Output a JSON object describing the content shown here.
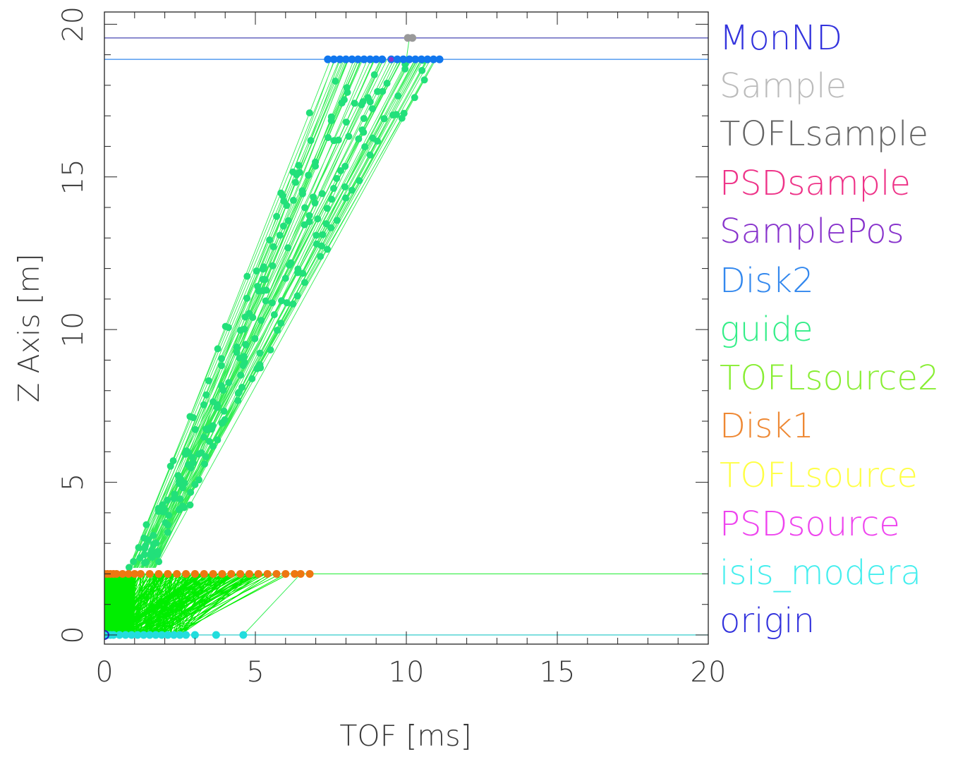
{
  "chart_data": {
    "type": "line",
    "title": "",
    "xlabel": "TOF [ms]",
    "ylabel": "Z Axis [m]",
    "xlim": [
      0,
      20
    ],
    "ylim": [
      -0.3,
      20.4
    ],
    "x_ticks": [
      0,
      5,
      10,
      15,
      20
    ],
    "x_tick_labels": [
      "0",
      "5",
      "10",
      "15",
      "20"
    ],
    "y_ticks": [
      0,
      5,
      10,
      15,
      20
    ],
    "y_tick_labels": [
      "0",
      "5",
      "10",
      "15",
      "20"
    ],
    "grid": false,
    "legend_position": "right",
    "legend": [
      {
        "name": "MonND",
        "color": "#3333dd"
      },
      {
        "name": "Sample",
        "color": "#bbbbbb"
      },
      {
        "name": "TOFLsample",
        "color": "#666666"
      },
      {
        "name": "PSDsample",
        "color": "#ee3388"
      },
      {
        "name": "SamplePos",
        "color": "#8833cc"
      },
      {
        "name": "Disk2",
        "color": "#3388ee"
      },
      {
        "name": "guide",
        "color": "#33ee88"
      },
      {
        "name": "TOFLsource2",
        "color": "#88ee33"
      },
      {
        "name": "Disk1",
        "color": "#ee8833"
      },
      {
        "name": "TOFLsource",
        "color": "#ffff44"
      },
      {
        "name": "PSDsource",
        "color": "#ee44ee"
      },
      {
        "name": "isis_modera",
        "color": "#44eeee"
      },
      {
        "name": "origin",
        "color": "#3333dd"
      }
    ],
    "component_lines": [
      {
        "name": "MonND",
        "z": 19.55,
        "color": "#3333aa"
      },
      {
        "name": "Disk2",
        "z": 18.85,
        "color": "#3388ee"
      },
      {
        "name": "Disk1",
        "z": 2.0,
        "color": "#33ee44"
      },
      {
        "name": "isis_modera",
        "z": 0.0,
        "color": "#33cccc"
      }
    ],
    "series": [
      {
        "name": "Disk1",
        "color": "#ee7711",
        "z": 2.0,
        "x": [
          0.0,
          0.1,
          0.2,
          0.3,
          0.4,
          0.6,
          0.8,
          1.0,
          1.2,
          1.5,
          1.8,
          2.1,
          2.4,
          2.7,
          3.0,
          3.3,
          3.6,
          3.9,
          4.2,
          4.5,
          4.8,
          5.1,
          5.4,
          5.7,
          6.0,
          6.3,
          6.5,
          6.8
        ]
      },
      {
        "name": "isis_modera",
        "color": "#22dddd",
        "z": 0.0,
        "x": [
          0.0,
          0.1,
          0.2,
          0.3,
          0.5,
          0.7,
          0.9,
          1.1,
          1.3,
          1.5,
          1.7,
          1.9,
          2.1,
          2.3,
          2.5,
          2.7,
          3.0,
          3.7,
          4.6
        ]
      },
      {
        "name": "Disk2",
        "color": "#1177ee",
        "z": 18.85,
        "x": [
          7.4,
          7.6,
          7.8,
          8.0,
          8.2,
          8.4,
          8.6,
          8.8,
          9.0,
          9.2,
          9.5,
          9.7,
          9.9,
          10.1,
          10.3,
          10.5,
          10.7,
          10.9,
          11.1
        ]
      },
      {
        "name": "MonND",
        "color": "#999999",
        "z": 19.55,
        "x": [
          10.05,
          10.2
        ]
      }
    ]
  },
  "legend_text": {
    "monnd": "MonND",
    "sample": "Sample",
    "toflsample": "TOFLsample",
    "psdsample": "PSDsample",
    "samplepos": "SamplePos",
    "disk2": "Disk2",
    "guide": "guide",
    "toflsource2": "TOFLsource2",
    "disk1": "Disk1",
    "toflsource": "TOFLsource",
    "psdsource": "PSDsource",
    "isis_modera": "isis_modera",
    "origin": "origin"
  }
}
